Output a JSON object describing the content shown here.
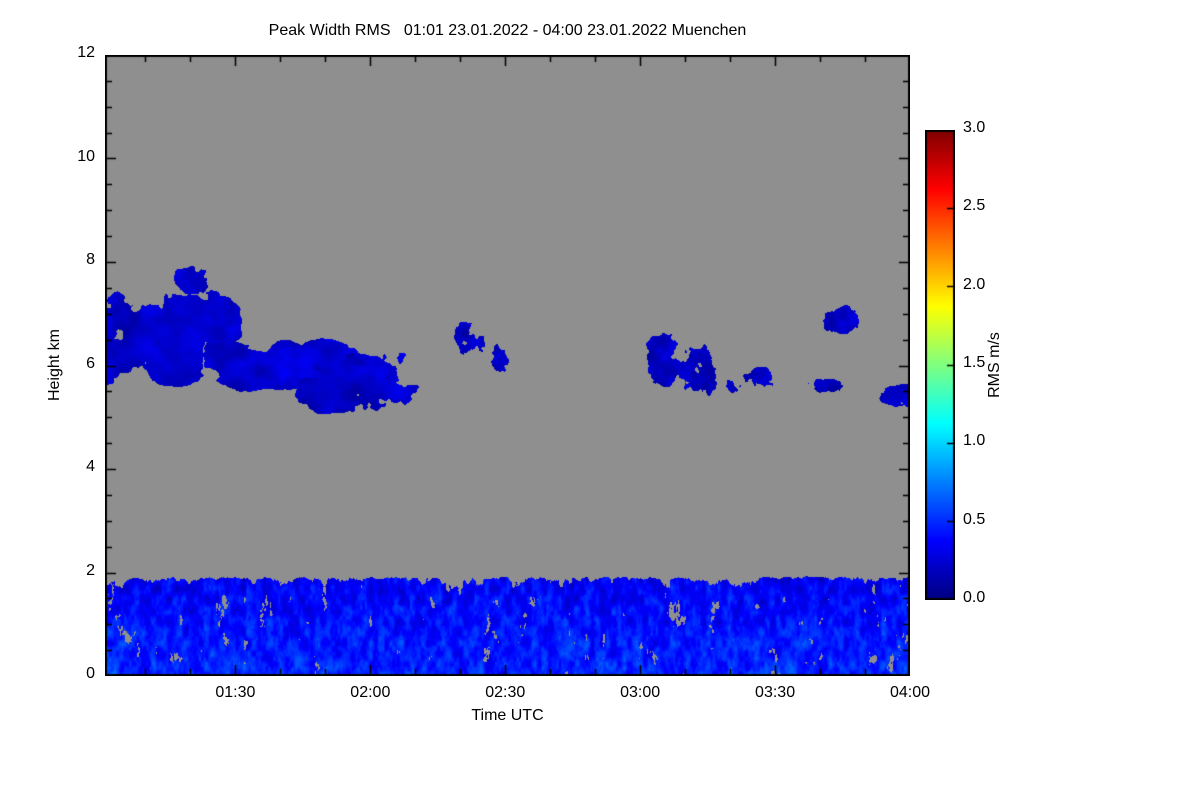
{
  "figure": {
    "background": "#ffffff",
    "axis_color": "#000000",
    "text_color": "#000000"
  },
  "chart_data": {
    "type": "heatmap",
    "title": "Peak Width RMS   01:01 23.01.2022 - 04:00 23.01.2022 Muenchen",
    "xlabel": "Time UTC",
    "ylabel": "Height km",
    "x_range_hours": [
      1.0167,
      4.0
    ],
    "x_ticks": [
      {
        "t": 1.5,
        "label": "01:30"
      },
      {
        "t": 2.0,
        "label": "02:00"
      },
      {
        "t": 2.5,
        "label": "02:30"
      },
      {
        "t": 3.0,
        "label": "03:00"
      },
      {
        "t": 3.5,
        "label": "03:30"
      },
      {
        "t": 4.0,
        "label": "04:00"
      }
    ],
    "x_minor_step": 0.1666667,
    "y_range_km": [
      0,
      12
    ],
    "y_ticks": [
      {
        "h": 0,
        "label": "0"
      },
      {
        "h": 2,
        "label": "2"
      },
      {
        "h": 4,
        "label": "4"
      },
      {
        "h": 6,
        "label": "6"
      },
      {
        "h": 8,
        "label": "8"
      },
      {
        "h": 10,
        "label": "10"
      },
      {
        "h": 12,
        "label": "12"
      }
    ],
    "y_minor_step": 0.5,
    "nodata_color": "#8f8f8f",
    "grid": false,
    "colorbar": {
      "label": "RMS m/s",
      "min": 0.0,
      "max": 3.0,
      "ticks": [
        {
          "v": 0.0,
          "label": "0.0"
        },
        {
          "v": 0.5,
          "label": "0.5"
        },
        {
          "v": 1.0,
          "label": "1.0"
        },
        {
          "v": 1.5,
          "label": "1.5"
        },
        {
          "v": 2.0,
          "label": "2.0"
        },
        {
          "v": 2.5,
          "label": "2.5"
        },
        {
          "v": 3.0,
          "label": "3.0"
        }
      ],
      "colormap": "jet",
      "colormap_stops": [
        {
          "p": 0.0,
          "color": "#000080"
        },
        {
          "p": 0.125,
          "color": "#0000ff"
        },
        {
          "p": 0.375,
          "color": "#00ffff"
        },
        {
          "p": 0.625,
          "color": "#ffff00"
        },
        {
          "p": 0.875,
          "color": "#ff0000"
        },
        {
          "p": 1.0,
          "color": "#800000"
        }
      ]
    },
    "features": [
      {
        "kind": "cloud",
        "t0": 0.9,
        "t1": 1.54,
        "h0": 5.55,
        "h1": 7.55,
        "seed": 11,
        "threshold": 0.3,
        "ft": 7,
        "fh": 1.3,
        "vmin": 0.04,
        "vmax": 0.4,
        "edge_u": 0.25,
        "edge_w": 0.3
      },
      {
        "kind": "cloud",
        "t0": 1.26,
        "t1": 1.43,
        "h0": 7.25,
        "h1": 7.98,
        "seed": 12,
        "threshold": 0.35,
        "ft": 11,
        "fh": 2.2,
        "vmin": 0.04,
        "vmax": 0.35,
        "edge_u": 0.5,
        "edge_w": 0.5
      },
      {
        "kind": "cloud",
        "t0": 1.36,
        "t1": 1.98,
        "h0": 5.45,
        "h1": 6.55,
        "seed": 13,
        "threshold": 0.3,
        "ft": 7,
        "fh": 1.7,
        "vmin": 0.04,
        "vmax": 0.4,
        "edge_u": 0.25,
        "edge_w": 0.35
      },
      {
        "kind": "cloud",
        "t0": 1.7,
        "t1": 2.26,
        "h0": 4.98,
        "h1": 6.35,
        "seed": 14,
        "threshold": 0.31,
        "ft": 7,
        "fh": 1.7,
        "vmin": 0.04,
        "vmax": 0.4,
        "edge_u": 0.3,
        "edge_w": 0.35
      },
      {
        "kind": "cloud",
        "t0": 2.29,
        "t1": 2.47,
        "h0": 6.05,
        "h1": 6.95,
        "seed": 15,
        "threshold": 0.43,
        "ft": 15,
        "fh": 2.4,
        "vmin": 0.04,
        "vmax": 0.35,
        "edge_u": 0.5,
        "edge_w": 0.45
      },
      {
        "kind": "cloud",
        "t0": 2.4,
        "t1": 2.57,
        "h0": 5.78,
        "h1": 6.5,
        "seed": 16,
        "threshold": 0.43,
        "ft": 15,
        "fh": 2.4,
        "vmin": 0.04,
        "vmax": 0.35,
        "edge_u": 0.5,
        "edge_w": 0.45
      },
      {
        "kind": "cloud",
        "t0": 2.99,
        "t1": 3.18,
        "h0": 5.5,
        "h1": 6.8,
        "seed": 17,
        "threshold": 0.38,
        "ft": 13,
        "fh": 1.9,
        "vmin": 0.04,
        "vmax": 0.38,
        "edge_u": 0.45,
        "edge_w": 0.4
      },
      {
        "kind": "cloud",
        "t0": 3.11,
        "t1": 3.32,
        "h0": 5.25,
        "h1": 6.9,
        "seed": 18,
        "threshold": 0.4,
        "ft": 13,
        "fh": 1.9,
        "vmin": 0.04,
        "vmax": 0.38,
        "edge_u": 0.45,
        "edge_w": 0.4
      },
      {
        "kind": "cloud",
        "t0": 3.3,
        "t1": 3.52,
        "h0": 5.3,
        "h1": 6.05,
        "seed": 19,
        "threshold": 0.4,
        "ft": 13,
        "fh": 2.2,
        "vmin": 0.04,
        "vmax": 0.38,
        "edge_u": 0.45,
        "edge_w": 0.45
      },
      {
        "kind": "cloud",
        "t0": 3.52,
        "t1": 3.82,
        "h0": 5.42,
        "h1": 5.8,
        "seed": 20,
        "threshold": 0.43,
        "ft": 16,
        "fh": 3.0,
        "vmin": 0.04,
        "vmax": 0.35,
        "edge_u": 0.5,
        "edge_w": 0.5
      },
      {
        "kind": "cloud",
        "t0": 3.66,
        "t1": 3.85,
        "h0": 6.55,
        "h1": 7.25,
        "seed": 21,
        "threshold": 0.36,
        "ft": 13,
        "fh": 2.2,
        "vmin": 0.04,
        "vmax": 0.38,
        "edge_u": 0.5,
        "edge_w": 0.45
      },
      {
        "kind": "cloud",
        "t0": 3.87,
        "t1": 4.07,
        "h0": 5.12,
        "h1": 5.68,
        "seed": 22,
        "threshold": 0.33,
        "ft": 11,
        "fh": 2.2,
        "vmin": 0.04,
        "vmax": 0.38,
        "edge_u": 0.3,
        "edge_w": 0.4
      },
      {
        "kind": "layer",
        "t0": 1.0167,
        "t1": 4.0,
        "h0": 0.0,
        "h1": 1.97,
        "seed": 31,
        "threshold": 0.26,
        "ft": 30,
        "fh": 2.8,
        "vmin": 0.08,
        "vmax": 0.6,
        "edge_u": 0,
        "edge_w": 0
      }
    ]
  }
}
